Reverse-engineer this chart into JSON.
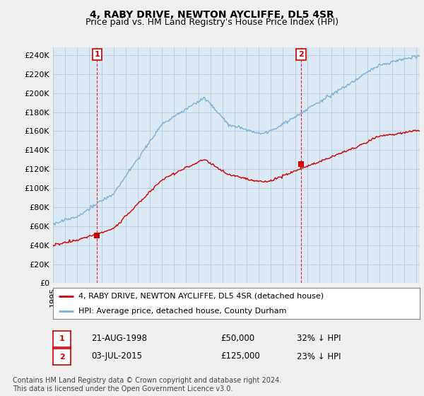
{
  "title": "4, RABY DRIVE, NEWTON AYCLIFFE, DL5 4SR",
  "subtitle": "Price paid vs. HM Land Registry's House Price Index (HPI)",
  "ylabel_ticks": [
    0,
    20000,
    40000,
    60000,
    80000,
    100000,
    120000,
    140000,
    160000,
    180000,
    200000,
    220000,
    240000
  ],
  "ylim": [
    0,
    248000
  ],
  "xlim_start": 1995.0,
  "xlim_end": 2025.3,
  "sale1_year": 1998.64,
  "sale1_price": 50000,
  "sale1_label": "1",
  "sale1_date": "21-AUG-1998",
  "sale1_text": "£50,000",
  "sale1_pct": "32% ↓ HPI",
  "sale2_year": 2015.5,
  "sale2_price": 125000,
  "sale2_label": "2",
  "sale2_date": "03-JUL-2015",
  "sale2_text": "£125,000",
  "sale2_pct": "23% ↓ HPI",
  "hpi_color": "#7bafd4",
  "price_color": "#cc0000",
  "marker_box_color": "#cc0000",
  "background_color": "#f0f0f0",
  "plot_bg_color": "#dce9f5",
  "grid_color": "#b8cfe0",
  "legend_line1": "4, RABY DRIVE, NEWTON AYCLIFFE, DL5 4SR (detached house)",
  "legend_line2": "HPI: Average price, detached house, County Durham",
  "footer": "Contains HM Land Registry data © Crown copyright and database right 2024.\nThis data is licensed under the Open Government Licence v3.0.",
  "title_fontsize": 10,
  "subtitle_fontsize": 9,
  "tick_fontsize": 8,
  "legend_fontsize": 8
}
